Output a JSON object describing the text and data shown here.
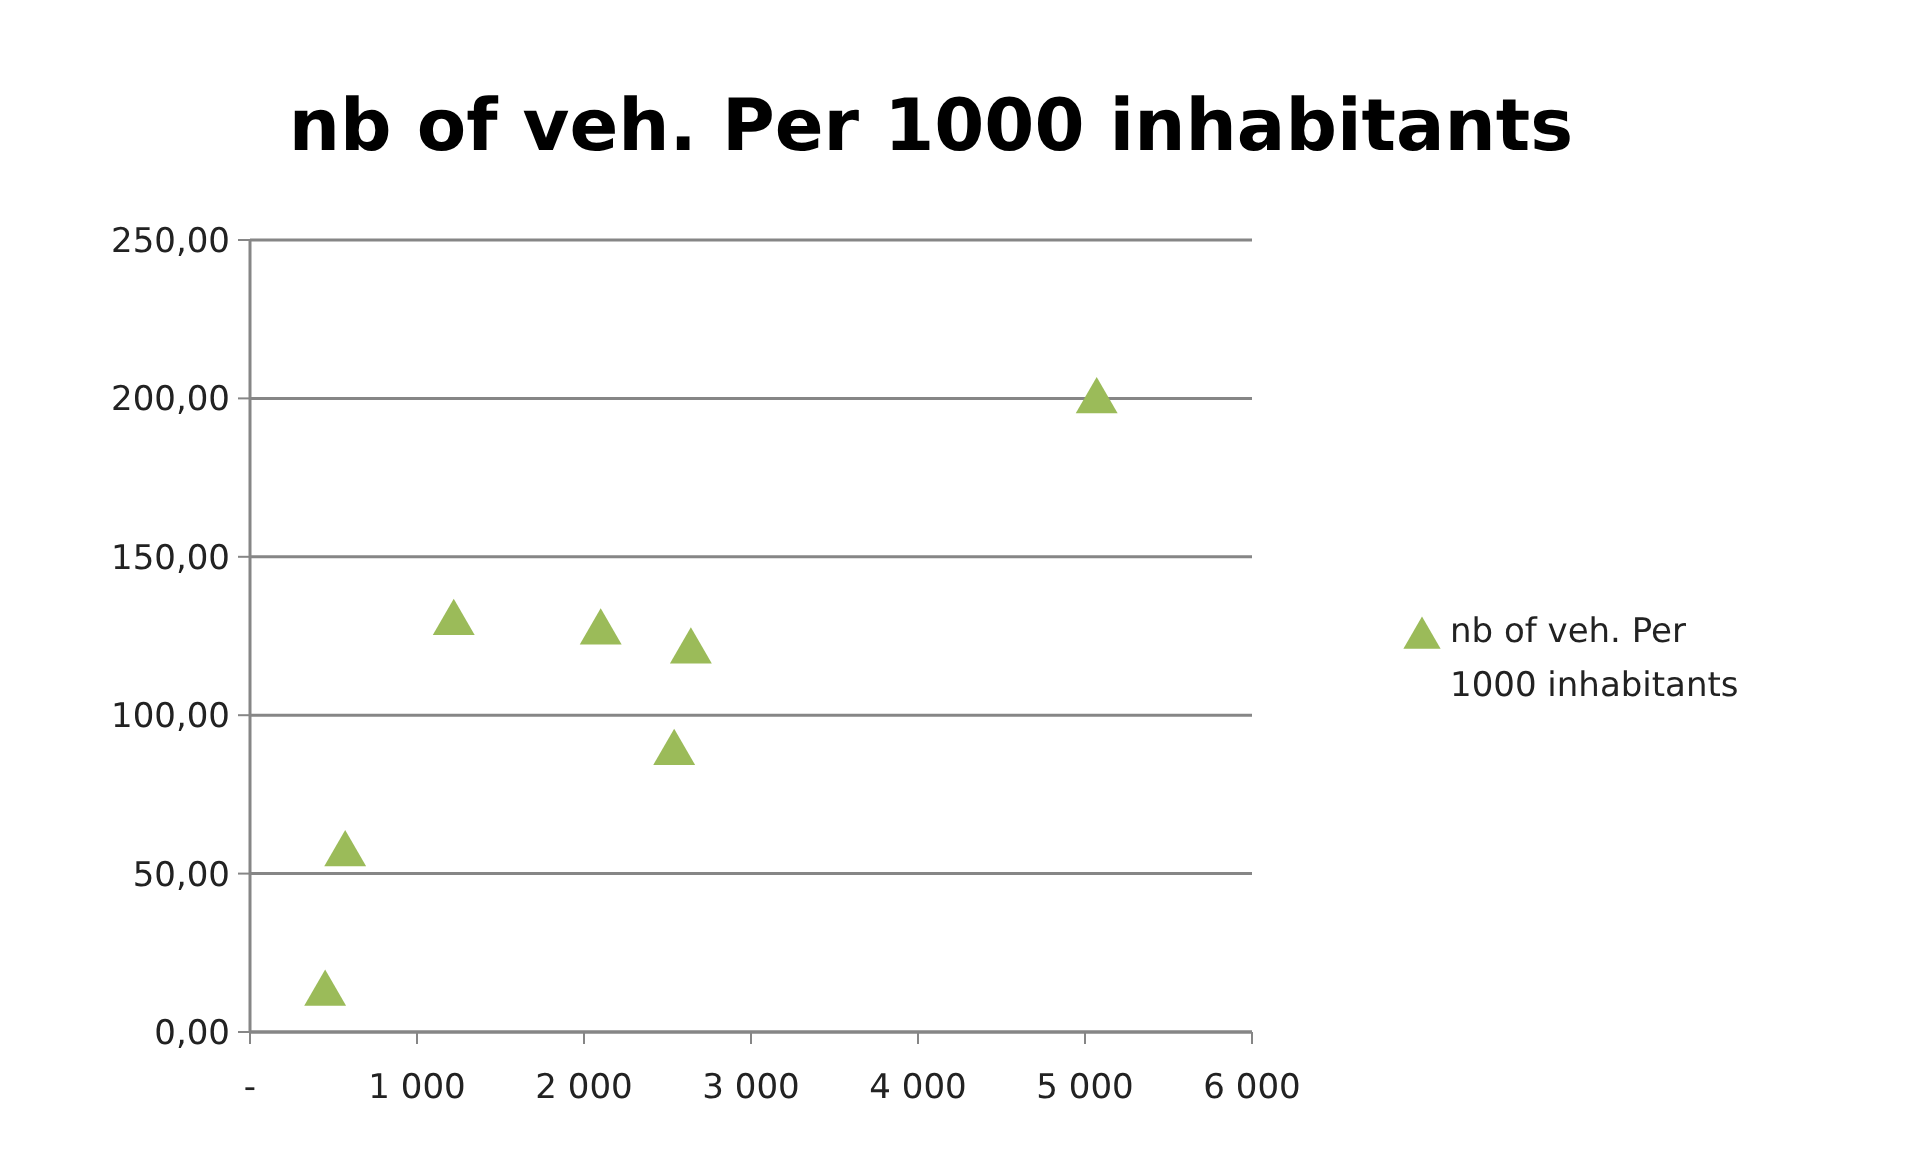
{
  "chart_data": {
    "type": "scatter",
    "title": "nb of veh. Per 1000 inhabitants",
    "x": [
      450,
      570,
      1220,
      2100,
      2540,
      2640,
      5070
    ],
    "series": [
      {
        "name": "nb of veh. Per 1000 inhabitants",
        "color": "#9bbb59",
        "values": [
          14,
          58,
          131,
          128,
          90,
          122,
          201
        ]
      }
    ],
    "xlim": [
      0,
      6000
    ],
    "xticks": [
      {
        "value": 0,
        "label": "-"
      },
      {
        "value": 1000,
        "label": "1 000"
      },
      {
        "value": 2000,
        "label": "2 000"
      },
      {
        "value": 3000,
        "label": "3 000"
      },
      {
        "value": 4000,
        "label": "4 000"
      },
      {
        "value": 5000,
        "label": "5 000"
      },
      {
        "value": 6000,
        "label": "6 000"
      }
    ],
    "ylim": [
      0,
      250
    ],
    "yticks": [
      {
        "value": 0,
        "label": "0,00"
      },
      {
        "value": 50,
        "label": "50,00"
      },
      {
        "value": 100,
        "label": "100,00"
      },
      {
        "value": 150,
        "label": "150,00"
      },
      {
        "value": 200,
        "label": "200,00"
      },
      {
        "value": 250,
        "label": "250,00"
      }
    ],
    "grid": "y",
    "legend": "right",
    "marker": "triangle"
  }
}
